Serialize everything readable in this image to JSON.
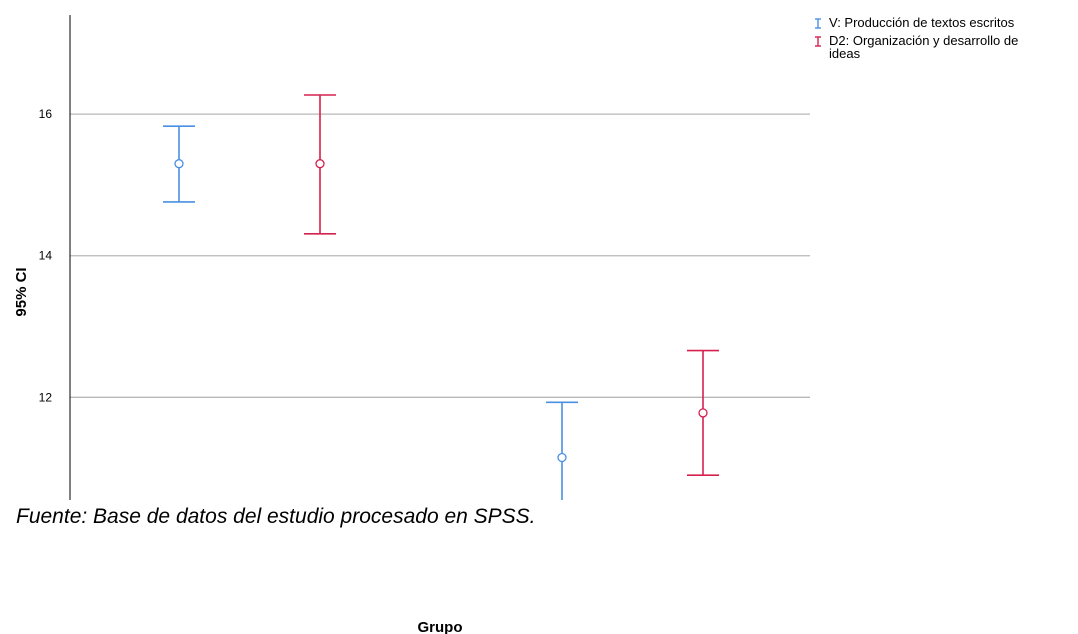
{
  "chart_data": {
    "type": "error-bar",
    "ylabel": "95% CI",
    "xlabel": "Grupo",
    "ylim": [
      10.55,
      17.4
    ],
    "yticks": [
      12,
      14,
      16
    ],
    "grid": true,
    "legend_position": "top-right",
    "series": [
      {
        "name": "V: Producción de textos escritos",
        "color": "#4a90e2",
        "points": [
          {
            "x": 1,
            "mean": 15.3,
            "lower": 14.76,
            "upper": 15.83
          },
          {
            "x": 3,
            "mean": 11.15,
            "lower": 10.55,
            "upper": 11.93
          }
        ]
      },
      {
        "name": "D2: Organización y desarrollo de ideas",
        "color": "#d6204e",
        "points": [
          {
            "x": 2,
            "mean": 15.3,
            "lower": 14.31,
            "upper": 16.27
          },
          {
            "x": 4,
            "mean": 11.78,
            "lower": 10.9,
            "upper": 12.66
          }
        ]
      }
    ]
  },
  "caption": "Fuente: Base de datos del estudio procesado en SPSS."
}
